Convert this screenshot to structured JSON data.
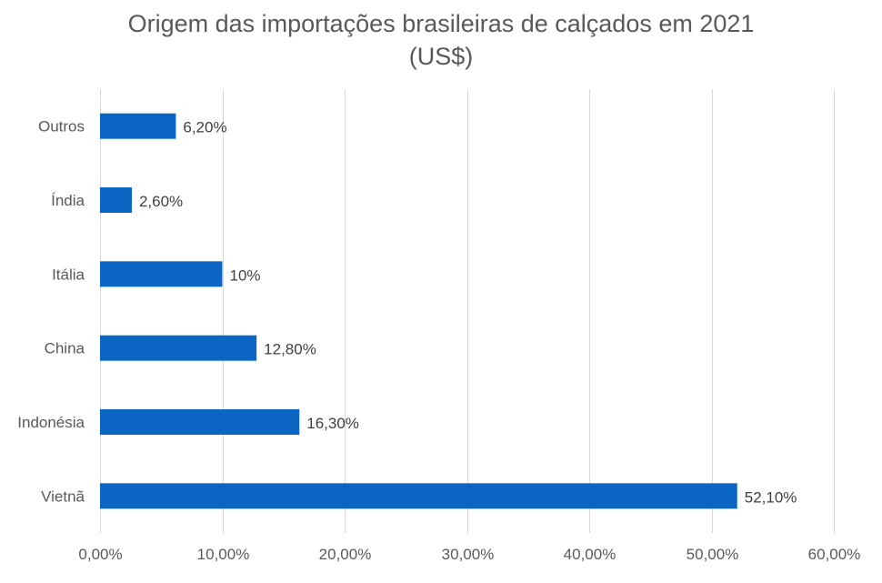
{
  "chart_data": {
    "type": "bar",
    "orientation": "horizontal",
    "title": "Origem das importações brasileiras de calçados em 2021",
    "subtitle": "(US$)",
    "categories": [
      "Outros",
      "Índia",
      "Itália",
      "China",
      "Indonésia",
      "Vietnã"
    ],
    "values": [
      6.2,
      2.6,
      10,
      12.8,
      16.3,
      52.1
    ],
    "data_labels": [
      "6,20%",
      "2,60%",
      "10%",
      "12,80%",
      "16,30%",
      "52,10%"
    ],
    "xlim": [
      0,
      60
    ],
    "x_ticks": [
      0,
      10,
      20,
      30,
      40,
      50,
      60
    ],
    "x_tick_labels": [
      "0,00%",
      "10,00%",
      "20,00%",
      "30,00%",
      "40,00%",
      "50,00%",
      "60,00%"
    ],
    "xlabel": "",
    "ylabel": "",
    "grid": "vertical",
    "legend": "none",
    "bar_color": "#0a66c2"
  }
}
